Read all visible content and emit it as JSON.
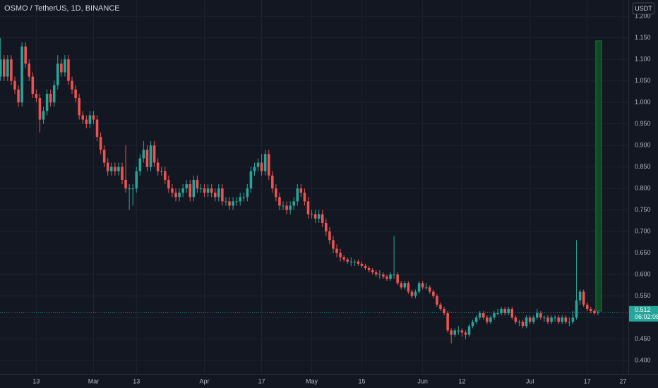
{
  "chart_data": {
    "type": "candlestick",
    "title": "OSMO / TetherUS, 1D, BINANCE",
    "currency_button": "USDT",
    "up_color": "#26a69a",
    "down_color": "#ef5350",
    "grid": true,
    "xlim": [
      -0.14,
      175.5
    ],
    "ylim": [
      0.369,
      1.238
    ],
    "xticks": [
      {
        "value": 10,
        "label": "13"
      },
      {
        "value": 26,
        "label": "Mar"
      },
      {
        "value": 38,
        "label": "13"
      },
      {
        "value": 57,
        "label": "Apr"
      },
      {
        "value": 73,
        "label": "17"
      },
      {
        "value": 87,
        "label": "May"
      },
      {
        "value": 101,
        "label": "15"
      },
      {
        "value": 118,
        "label": "Jun"
      },
      {
        "value": 129,
        "label": "12"
      },
      {
        "value": 148,
        "label": "Jul"
      },
      {
        "value": 164,
        "label": "17"
      },
      {
        "value": 174,
        "label": "27"
      }
    ],
    "yticks": [
      {
        "value": 0.4,
        "label": "0.400"
      },
      {
        "value": 0.45,
        "label": "0.450"
      },
      {
        "value": 0.5,
        "label": "0.500"
      },
      {
        "value": 0.55,
        "label": "0.550"
      },
      {
        "value": 0.6,
        "label": "0.600"
      },
      {
        "value": 0.65,
        "label": "0.650"
      },
      {
        "value": 0.7,
        "label": "0.700"
      },
      {
        "value": 0.75,
        "label": "0.750"
      },
      {
        "value": 0.8,
        "label": "0.800"
      },
      {
        "value": 0.85,
        "label": "0.850"
      },
      {
        "value": 0.9,
        "label": "0.900"
      },
      {
        "value": 0.95,
        "label": "0.950"
      },
      {
        "value": 1.0,
        "label": "1.000"
      },
      {
        "value": 1.05,
        "label": "1.050"
      },
      {
        "value": 1.1,
        "label": "1.100"
      },
      {
        "value": 1.15,
        "label": "1.150"
      },
      {
        "value": 1.2,
        "label": "1.200"
      }
    ],
    "last_price": 0.512,
    "countdown": "06:02:08",
    "target_box": {
      "xrange": [
        166.4,
        168
      ],
      "yrange": [
        0.515,
        1.143
      ],
      "color": "#0d4a24",
      "border": "#1b7a3a"
    },
    "ohlc": [
      [
        1.06,
        1.15,
        1.05,
        1.1
      ],
      [
        1.1,
        1.11,
        1.05,
        1.06
      ],
      [
        1.06,
        1.11,
        1.05,
        1.1
      ],
      [
        1.1,
        1.11,
        1.04,
        1.05
      ],
      [
        1.05,
        1.06,
        1.02,
        1.03
      ],
      [
        1.03,
        1.04,
        0.99,
        1.0
      ],
      [
        1.0,
        1.14,
        0.99,
        1.13
      ],
      [
        1.13,
        1.14,
        1.08,
        1.09
      ],
      [
        1.09,
        1.1,
        1.05,
        1.06
      ],
      [
        1.06,
        1.07,
        1.01,
        1.02
      ],
      [
        1.02,
        1.03,
        1.0,
        1.01
      ],
      [
        1.01,
        1.02,
        0.93,
        0.96
      ],
      [
        0.96,
        0.99,
        0.95,
        0.98
      ],
      [
        0.98,
        1.03,
        0.97,
        1.02
      ],
      [
        1.02,
        1.03,
        0.99,
        1.0
      ],
      [
        1.0,
        1.05,
        0.99,
        1.04
      ],
      [
        1.04,
        1.11,
        1.03,
        1.09
      ],
      [
        1.09,
        1.1,
        1.06,
        1.07
      ],
      [
        1.07,
        1.11,
        1.06,
        1.1
      ],
      [
        1.1,
        1.11,
        1.04,
        1.05
      ],
      [
        1.05,
        1.06,
        1.02,
        1.03
      ],
      [
        1.03,
        1.04,
        1.0,
        1.01
      ],
      [
        1.01,
        1.02,
        0.96,
        0.97
      ],
      [
        0.97,
        0.98,
        0.95,
        0.96
      ],
      [
        0.96,
        0.97,
        0.94,
        0.95
      ],
      [
        0.95,
        0.98,
        0.94,
        0.97
      ],
      [
        0.97,
        0.98,
        0.95,
        0.96
      ],
      [
        0.96,
        0.97,
        0.91,
        0.92
      ],
      [
        0.92,
        0.93,
        0.88,
        0.89
      ],
      [
        0.89,
        0.9,
        0.85,
        0.86
      ],
      [
        0.86,
        0.87,
        0.83,
        0.84
      ],
      [
        0.84,
        0.86,
        0.83,
        0.85
      ],
      [
        0.85,
        0.86,
        0.83,
        0.84
      ],
      [
        0.84,
        0.86,
        0.83,
        0.85
      ],
      [
        0.85,
        0.86,
        0.81,
        0.82
      ],
      [
        0.82,
        0.9,
        0.79,
        0.8
      ],
      [
        0.8,
        0.81,
        0.75,
        0.8
      ],
      [
        0.8,
        0.81,
        0.76,
        0.8
      ],
      [
        0.8,
        0.85,
        0.79,
        0.84
      ],
      [
        0.84,
        0.88,
        0.83,
        0.87
      ],
      [
        0.87,
        0.91,
        0.86,
        0.89
      ],
      [
        0.89,
        0.9,
        0.84,
        0.85
      ],
      [
        0.85,
        0.91,
        0.84,
        0.9
      ],
      [
        0.9,
        0.91,
        0.85,
        0.86
      ],
      [
        0.86,
        0.87,
        0.83,
        0.84
      ],
      [
        0.84,
        0.85,
        0.83,
        0.84
      ],
      [
        0.84,
        0.85,
        0.81,
        0.82
      ],
      [
        0.82,
        0.83,
        0.79,
        0.8
      ],
      [
        0.8,
        0.81,
        0.78,
        0.79
      ],
      [
        0.79,
        0.8,
        0.77,
        0.78
      ],
      [
        0.78,
        0.8,
        0.77,
        0.79
      ],
      [
        0.79,
        0.81,
        0.78,
        0.8
      ],
      [
        0.8,
        0.82,
        0.79,
        0.81
      ],
      [
        0.81,
        0.82,
        0.77,
        0.78
      ],
      [
        0.78,
        0.83,
        0.77,
        0.82
      ],
      [
        0.82,
        0.83,
        0.79,
        0.8
      ],
      [
        0.8,
        0.81,
        0.79,
        0.8
      ],
      [
        0.8,
        0.81,
        0.78,
        0.79
      ],
      [
        0.79,
        0.81,
        0.78,
        0.8
      ],
      [
        0.8,
        0.81,
        0.78,
        0.79
      ],
      [
        0.79,
        0.8,
        0.77,
        0.78
      ],
      [
        0.78,
        0.81,
        0.77,
        0.8
      ],
      [
        0.8,
        0.81,
        0.76,
        0.77
      ],
      [
        0.77,
        0.78,
        0.76,
        0.77
      ],
      [
        0.77,
        0.78,
        0.75,
        0.76
      ],
      [
        0.76,
        0.78,
        0.75,
        0.77
      ],
      [
        0.77,
        0.78,
        0.76,
        0.77
      ],
      [
        0.77,
        0.79,
        0.76,
        0.78
      ],
      [
        0.78,
        0.79,
        0.77,
        0.78
      ],
      [
        0.78,
        0.81,
        0.77,
        0.8
      ],
      [
        0.8,
        0.85,
        0.79,
        0.84
      ],
      [
        0.84,
        0.86,
        0.83,
        0.85
      ],
      [
        0.85,
        0.87,
        0.84,
        0.86
      ],
      [
        0.86,
        0.88,
        0.83,
        0.84
      ],
      [
        0.84,
        0.89,
        0.83,
        0.88
      ],
      [
        0.88,
        0.89,
        0.82,
        0.83
      ],
      [
        0.83,
        0.84,
        0.79,
        0.8
      ],
      [
        0.8,
        0.81,
        0.77,
        0.78
      ],
      [
        0.78,
        0.79,
        0.75,
        0.76
      ],
      [
        0.76,
        0.77,
        0.75,
        0.76
      ],
      [
        0.76,
        0.77,
        0.74,
        0.75
      ],
      [
        0.75,
        0.77,
        0.74,
        0.76
      ],
      [
        0.76,
        0.78,
        0.75,
        0.77
      ],
      [
        0.77,
        0.81,
        0.76,
        0.8
      ],
      [
        0.8,
        0.81,
        0.78,
        0.79
      ],
      [
        0.79,
        0.8,
        0.76,
        0.77
      ],
      [
        0.77,
        0.78,
        0.73,
        0.74
      ],
      [
        0.74,
        0.75,
        0.73,
        0.74
      ],
      [
        0.74,
        0.75,
        0.72,
        0.73
      ],
      [
        0.73,
        0.75,
        0.72,
        0.74
      ],
      [
        0.74,
        0.75,
        0.71,
        0.72
      ],
      [
        0.72,
        0.73,
        0.69,
        0.7
      ],
      [
        0.7,
        0.71,
        0.67,
        0.68
      ],
      [
        0.68,
        0.69,
        0.65,
        0.66
      ],
      [
        0.66,
        0.67,
        0.64,
        0.65
      ],
      [
        0.65,
        0.66,
        0.63,
        0.64
      ],
      [
        0.64,
        0.645,
        0.63,
        0.635
      ],
      [
        0.635,
        0.64,
        0.625,
        0.63
      ],
      [
        0.63,
        0.64,
        0.62,
        0.63
      ],
      [
        0.63,
        0.635,
        0.62,
        0.63
      ],
      [
        0.63,
        0.635,
        0.62,
        0.625
      ],
      [
        0.625,
        0.63,
        0.615,
        0.62
      ],
      [
        0.62,
        0.625,
        0.61,
        0.615
      ],
      [
        0.615,
        0.62,
        0.605,
        0.61
      ],
      [
        0.61,
        0.615,
        0.6,
        0.605
      ],
      [
        0.605,
        0.61,
        0.595,
        0.6
      ],
      [
        0.6,
        0.61,
        0.59,
        0.6
      ],
      [
        0.6,
        0.605,
        0.59,
        0.595
      ],
      [
        0.595,
        0.6,
        0.585,
        0.59
      ],
      [
        0.59,
        0.605,
        0.585,
        0.6
      ],
      [
        0.6,
        0.69,
        0.59,
        0.6
      ],
      [
        0.6,
        0.605,
        0.575,
        0.58
      ],
      [
        0.58,
        0.585,
        0.565,
        0.57
      ],
      [
        0.57,
        0.585,
        0.565,
        0.58
      ],
      [
        0.58,
        0.585,
        0.555,
        0.56
      ],
      [
        0.56,
        0.565,
        0.545,
        0.55
      ],
      [
        0.55,
        0.565,
        0.545,
        0.56
      ],
      [
        0.56,
        0.585,
        0.555,
        0.58
      ],
      [
        0.58,
        0.585,
        0.565,
        0.57
      ],
      [
        0.57,
        0.58,
        0.565,
        0.57
      ],
      [
        0.57,
        0.575,
        0.555,
        0.56
      ],
      [
        0.56,
        0.565,
        0.545,
        0.55
      ],
      [
        0.55,
        0.555,
        0.525,
        0.53
      ],
      [
        0.53,
        0.535,
        0.515,
        0.52
      ],
      [
        0.52,
        0.525,
        0.505,
        0.51
      ],
      [
        0.51,
        0.515,
        0.465,
        0.47
      ],
      [
        0.47,
        0.475,
        0.44,
        0.46
      ],
      [
        0.46,
        0.475,
        0.455,
        0.47
      ],
      [
        0.47,
        0.48,
        0.46,
        0.47
      ],
      [
        0.47,
        0.475,
        0.455,
        0.465
      ],
      [
        0.465,
        0.47,
        0.45,
        0.46
      ],
      [
        0.46,
        0.485,
        0.455,
        0.48
      ],
      [
        0.48,
        0.495,
        0.475,
        0.49
      ],
      [
        0.49,
        0.505,
        0.485,
        0.5
      ],
      [
        0.5,
        0.515,
        0.495,
        0.51
      ],
      [
        0.51,
        0.515,
        0.495,
        0.5
      ],
      [
        0.5,
        0.505,
        0.485,
        0.49
      ],
      [
        0.49,
        0.505,
        0.485,
        0.5
      ],
      [
        0.5,
        0.515,
        0.495,
        0.51
      ],
      [
        0.51,
        0.52,
        0.505,
        0.51
      ],
      [
        0.51,
        0.525,
        0.505,
        0.52
      ],
      [
        0.52,
        0.525,
        0.505,
        0.51
      ],
      [
        0.51,
        0.525,
        0.505,
        0.52
      ],
      [
        0.52,
        0.525,
        0.495,
        0.5
      ],
      [
        0.5,
        0.505,
        0.485,
        0.49
      ],
      [
        0.49,
        0.495,
        0.48,
        0.49
      ],
      [
        0.49,
        0.495,
        0.475,
        0.48
      ],
      [
        0.48,
        0.505,
        0.475,
        0.5
      ],
      [
        0.5,
        0.505,
        0.485,
        0.49
      ],
      [
        0.49,
        0.505,
        0.485,
        0.5
      ],
      [
        0.5,
        0.52,
        0.495,
        0.51
      ],
      [
        0.51,
        0.515,
        0.495,
        0.5
      ],
      [
        0.5,
        0.505,
        0.49,
        0.5
      ],
      [
        0.5,
        0.505,
        0.485,
        0.49
      ],
      [
        0.49,
        0.505,
        0.485,
        0.5
      ],
      [
        0.5,
        0.505,
        0.49,
        0.5
      ],
      [
        0.5,
        0.505,
        0.485,
        0.49
      ],
      [
        0.49,
        0.505,
        0.485,
        0.5
      ],
      [
        0.5,
        0.505,
        0.485,
        0.49
      ],
      [
        0.49,
        0.5,
        0.48,
        0.49
      ],
      [
        0.49,
        0.515,
        0.485,
        0.5
      ],
      [
        0.5,
        0.68,
        0.495,
        0.54
      ],
      [
        0.54,
        0.565,
        0.53,
        0.56
      ],
      [
        0.56,
        0.565,
        0.525,
        0.53
      ],
      [
        0.53,
        0.535,
        0.515,
        0.52
      ],
      [
        0.52,
        0.525,
        0.51,
        0.515
      ],
      [
        0.515,
        0.52,
        0.505,
        0.51
      ],
      [
        0.51,
        0.52,
        0.505,
        0.512
      ]
    ]
  }
}
